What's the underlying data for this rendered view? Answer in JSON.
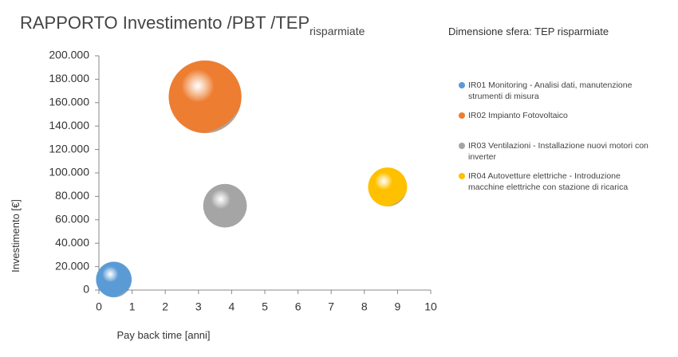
{
  "chart_data": {
    "type": "bubble",
    "title": "RAPPORTO Investimento /PBT /TEP",
    "title_subscript": "risparmiate",
    "annotation": "Dimensione sfera: TEP risparmiate",
    "x_label": "Pay back time [anni]",
    "y_label": "Investimento [€]",
    "xlim": [
      0,
      10
    ],
    "xticks": [
      0,
      1,
      2,
      3,
      4,
      5,
      6,
      7,
      8,
      9,
      10
    ],
    "ylim": [
      0,
      200000
    ],
    "yticks": [
      0,
      {
        "value": 20000,
        "label": "20.000"
      },
      {
        "value": 40000,
        "label": "40.000"
      },
      {
        "value": 60000,
        "label": "60.000"
      },
      {
        "value": 80000,
        "label": "80.000"
      },
      {
        "value": 100000,
        "label": "100.000"
      },
      {
        "value": 120000,
        "label": "120.000"
      },
      {
        "value": 140000,
        "label": "140.000"
      },
      {
        "value": 160000,
        "label": "160.000"
      },
      {
        "value": 180000,
        "label": "180.000"
      },
      {
        "value": 200000,
        "label": "200.000"
      }
    ],
    "grid": false,
    "series": [
      {
        "name": "IR01 Monitoring - Analisi dati, manutenzione strumenti di misura",
        "color": "#5b9bd5",
        "x": [
          0.45
        ],
        "values": [
          9000
        ],
        "sizes": [
          10
        ]
      },
      {
        "name": "IR02 Impianto Fotovoltaico",
        "color": "#ed7d31",
        "x": [
          3.2
        ],
        "values": [
          165000
        ],
        "sizes": [
          42
        ]
      },
      {
        "name": "IR03 Ventilazioni - Installazione nuovi motori con inverter",
        "color": "#a5a5a5",
        "x": [
          3.8
        ],
        "values": [
          72000
        ],
        "sizes": [
          15
        ]
      },
      {
        "name": "IR04 Autovetture elettriche - Introduzione macchine elettriche con stazione di ricarica",
        "color": "#ffc000",
        "x": [
          8.7
        ],
        "values": [
          88000
        ],
        "sizes": [
          12
        ]
      }
    ]
  }
}
